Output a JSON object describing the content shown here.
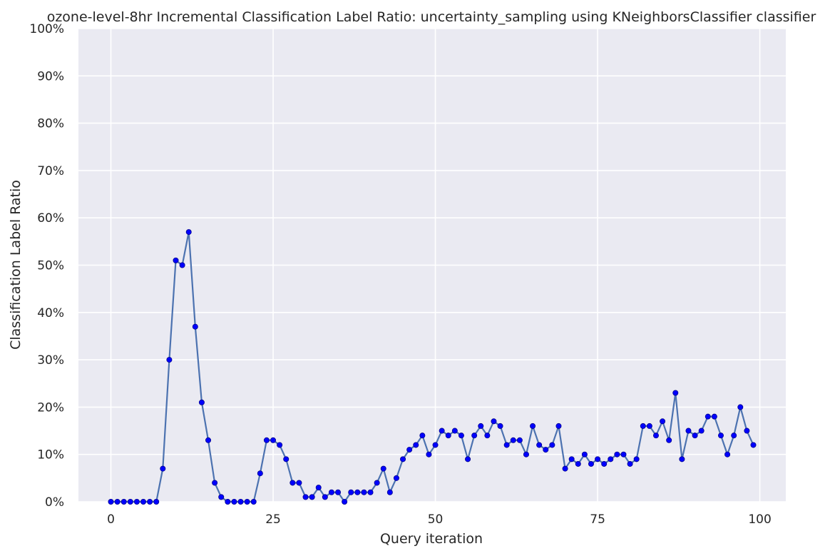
{
  "chart_data": {
    "type": "line",
    "title": "ozone-level-8hr Incremental Classification Label Ratio: uncertainty_sampling using KNeighborsClassifier classifier",
    "xlabel": "Query iteration",
    "ylabel": "Classification Label Ratio",
    "xlim": [
      -5,
      104
    ],
    "ylim": [
      0,
      1
    ],
    "x_ticks": [
      0,
      25,
      50,
      75,
      100
    ],
    "y_ticks": [
      0,
      0.1,
      0.2,
      0.3,
      0.4,
      0.5,
      0.6,
      0.7,
      0.8,
      0.9,
      1.0
    ],
    "y_tick_labels": [
      "0%",
      "10%",
      "20%",
      "30%",
      "40%",
      "50%",
      "60%",
      "70%",
      "80%",
      "90%",
      "100%"
    ],
    "grid": true,
    "line_color": "#4c72b0",
    "marker_color": "#0000ff",
    "background_color": "#eaeaf2",
    "series": [
      {
        "x": [
          0,
          1,
          2,
          3,
          4,
          5,
          6,
          7,
          8,
          9,
          10,
          11,
          12,
          13,
          14,
          15,
          16,
          17,
          18,
          19,
          20,
          21,
          22,
          23,
          24,
          25,
          26,
          27,
          28,
          29,
          30,
          31,
          32,
          33,
          34,
          35,
          36,
          37,
          38,
          39,
          40,
          41,
          42,
          43,
          44,
          45,
          46,
          47,
          48,
          49,
          50,
          51,
          52,
          53,
          54,
          55,
          56,
          57,
          58,
          59,
          60,
          61,
          62,
          63,
          64,
          65,
          66,
          67,
          68,
          69,
          70,
          71,
          72,
          73,
          74,
          75,
          76,
          77,
          78,
          79,
          80,
          81,
          82,
          83,
          84,
          85,
          86,
          87,
          88,
          89,
          90,
          91,
          92,
          93,
          94,
          95,
          96,
          97,
          98,
          99
        ],
        "values": [
          0,
          0,
          0,
          0,
          0,
          0,
          0,
          0,
          0.07,
          0.3,
          0.51,
          0.5,
          0.57,
          0.37,
          0.21,
          0.13,
          0.04,
          0.01,
          0,
          0,
          0,
          0,
          0,
          0.06,
          0.13,
          0.13,
          0.12,
          0.09,
          0.04,
          0.04,
          0.01,
          0.01,
          0.03,
          0.01,
          0.02,
          0.02,
          0,
          0.02,
          0.02,
          0.02,
          0.02,
          0.04,
          0.07,
          0.02,
          0.05,
          0.09,
          0.11,
          0.12,
          0.14,
          0.1,
          0.12,
          0.15,
          0.14,
          0.15,
          0.14,
          0.09,
          0.14,
          0.16,
          0.14,
          0.17,
          0.16,
          0.12,
          0.13,
          0.13,
          0.1,
          0.16,
          0.12,
          0.11,
          0.12,
          0.16,
          0.07,
          0.09,
          0.08,
          0.1,
          0.08,
          0.09,
          0.08,
          0.09,
          0.1,
          0.1,
          0.08,
          0.09,
          0.16,
          0.16,
          0.14,
          0.17,
          0.13,
          0.23,
          0.09,
          0.15,
          0.14,
          0.15,
          0.18,
          0.18,
          0.14,
          0.1,
          0.14,
          0.2,
          0.15,
          0.12
        ]
      }
    ]
  }
}
